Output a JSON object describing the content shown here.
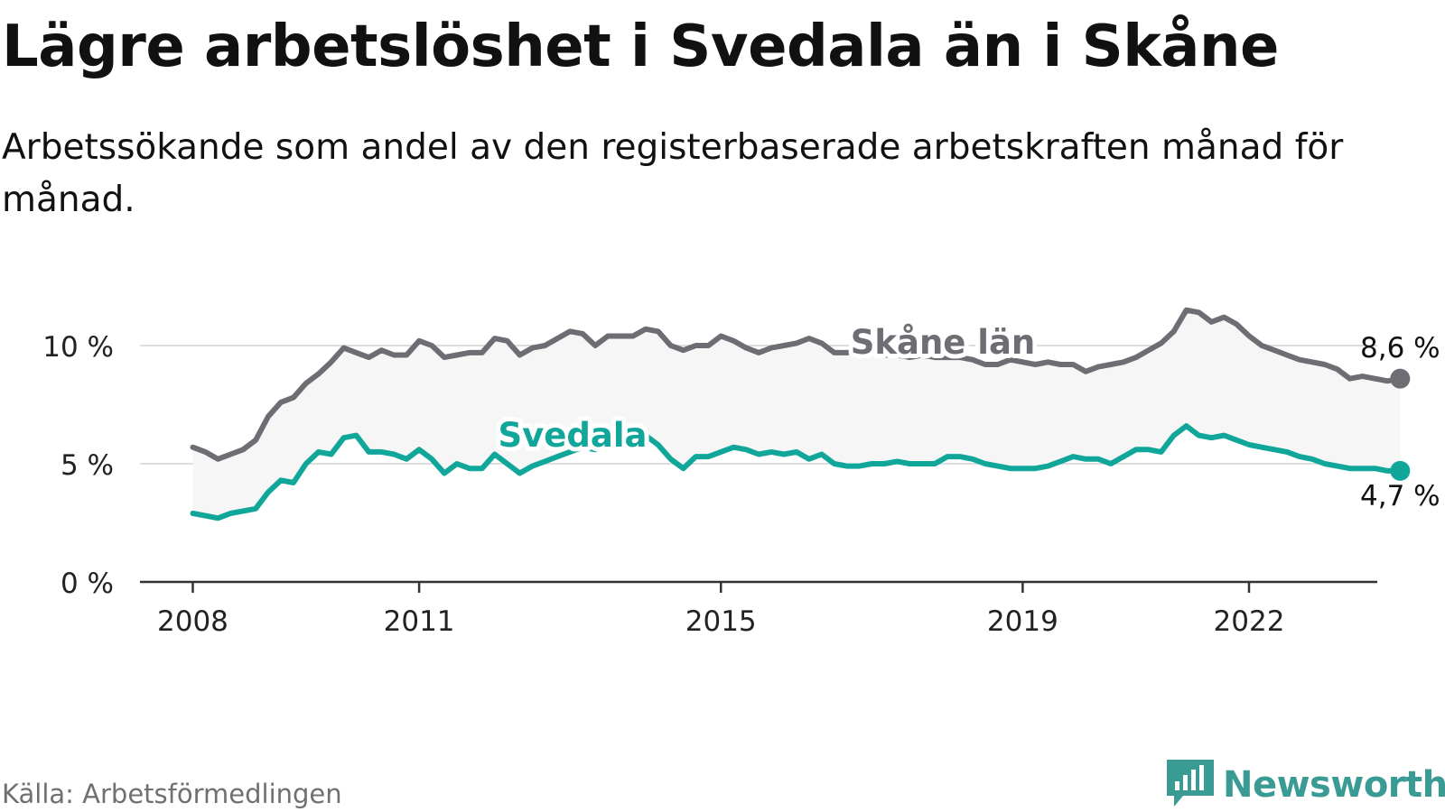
{
  "title": "Lägre arbetslöshet i Svedala än i Skåne",
  "subtitle": "Arbetssökande som andel av den registerbaserade arbetskraften månad för månad.",
  "source": "Källa: Arbetsförmedlingen",
  "brand": "Newsworthy",
  "colors": {
    "skane": "#6e6d73",
    "svedala": "#11a69a",
    "band": "#f6f6f6",
    "grid": "#dddddd",
    "axis": "#333333",
    "brand": "#3a9b94"
  },
  "chart_data": {
    "type": "line",
    "x_start": 2008.0,
    "x_step": 0.1667,
    "xlim": [
      2007.3,
      2023.7
    ],
    "ylim": [
      0,
      10
    ],
    "yticks": [
      0,
      5,
      10
    ],
    "ytick_labels": [
      "0 %",
      "5 %",
      "10 %"
    ],
    "xticks": [
      2008,
      2011,
      2015,
      2019,
      2022
    ],
    "xtick_labels": [
      "2008",
      "2011",
      "2015",
      "2019",
      "2022"
    ],
    "series": [
      {
        "name": "Skåne län",
        "key": "skane",
        "end_label": "8,6 %",
        "values": [
          5.7,
          5.5,
          5.2,
          5.4,
          5.6,
          6.0,
          7.0,
          7.6,
          7.8,
          8.4,
          8.8,
          9.3,
          9.9,
          9.7,
          9.5,
          9.8,
          9.6,
          9.6,
          10.2,
          10.0,
          9.5,
          9.6,
          9.7,
          9.7,
          10.3,
          10.2,
          9.6,
          9.9,
          10.0,
          10.3,
          10.6,
          10.5,
          10.0,
          10.4,
          10.4,
          10.4,
          10.7,
          10.6,
          10.0,
          9.8,
          10.0,
          10.0,
          10.4,
          10.2,
          9.9,
          9.7,
          9.9,
          10.0,
          10.1,
          10.3,
          10.1,
          9.7,
          9.7,
          9.8,
          9.8,
          9.6,
          9.6,
          9.5,
          9.6,
          9.5,
          9.5,
          9.5,
          9.4,
          9.2,
          9.2,
          9.4,
          9.3,
          9.2,
          9.3,
          9.2,
          9.2,
          8.9,
          9.1,
          9.2,
          9.3,
          9.5,
          9.8,
          10.1,
          10.6,
          11.5,
          11.4,
          11.0,
          11.2,
          10.9,
          10.4,
          10.0,
          9.8,
          9.6,
          9.4,
          9.3,
          9.2,
          9.0,
          8.6,
          8.7,
          8.6,
          8.5,
          8.6
        ]
      },
      {
        "name": "Svedala",
        "key": "svedala",
        "end_label": "4,7 %",
        "values": [
          2.9,
          2.8,
          2.7,
          2.9,
          3.0,
          3.1,
          3.8,
          4.3,
          4.2,
          5.0,
          5.5,
          5.4,
          6.1,
          6.2,
          5.5,
          5.5,
          5.4,
          5.2,
          5.6,
          5.2,
          4.6,
          5.0,
          4.8,
          4.8,
          5.4,
          5.0,
          4.6,
          4.9,
          5.1,
          5.3,
          5.5,
          5.7,
          5.6,
          5.8,
          6.0,
          6.0,
          6.2,
          5.8,
          5.2,
          4.8,
          5.3,
          5.3,
          5.5,
          5.7,
          5.6,
          5.4,
          5.5,
          5.4,
          5.5,
          5.2,
          5.4,
          5.0,
          4.9,
          4.9,
          5.0,
          5.0,
          5.1,
          5.0,
          5.0,
          5.0,
          5.3,
          5.3,
          5.2,
          5.0,
          4.9,
          4.8,
          4.8,
          4.8,
          4.9,
          5.1,
          5.3,
          5.2,
          5.2,
          5.0,
          5.3,
          5.6,
          5.6,
          5.5,
          6.2,
          6.6,
          6.2,
          6.1,
          6.2,
          6.0,
          5.8,
          5.7,
          5.6,
          5.5,
          5.3,
          5.2,
          5.0,
          4.9,
          4.8,
          4.8,
          4.8,
          4.7,
          4.7
        ]
      }
    ]
  }
}
